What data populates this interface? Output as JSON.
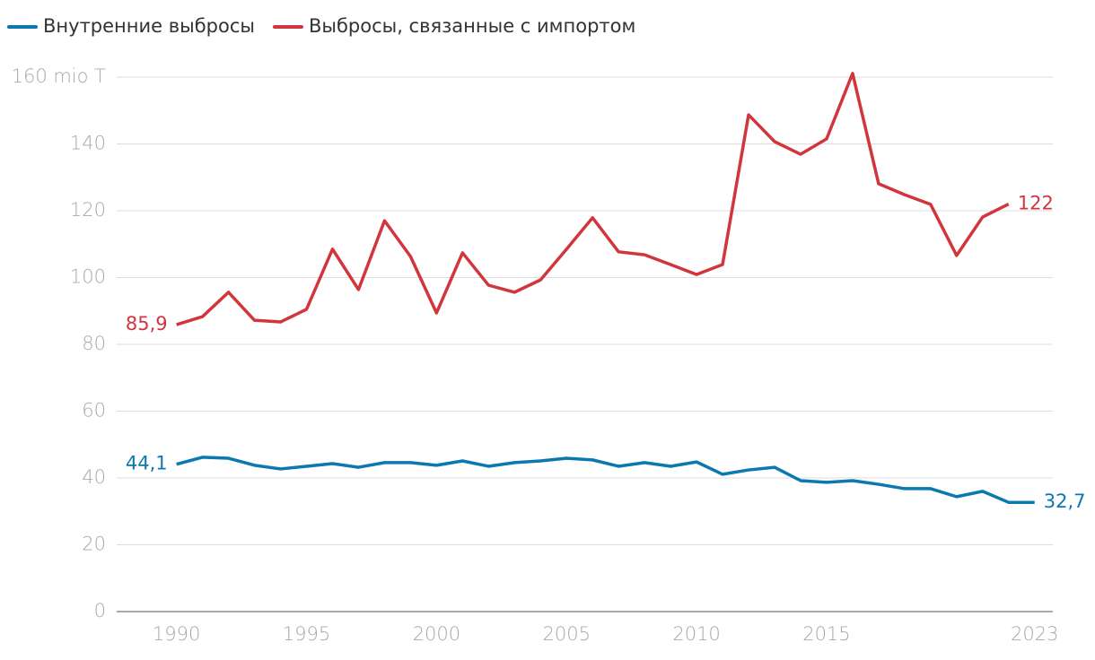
{
  "chart_data": {
    "type": "line",
    "x": [
      1990,
      1991,
      1992,
      1993,
      1994,
      1995,
      1996,
      1997,
      1998,
      1999,
      2000,
      2001,
      2002,
      2003,
      2004,
      2005,
      2006,
      2007,
      2008,
      2009,
      2010,
      2011,
      2012,
      2013,
      2014,
      2015,
      2016,
      2017,
      2018,
      2019,
      2020,
      2021,
      2022,
      2023
    ],
    "series": [
      {
        "name": "Внутренние выбросы",
        "color": "#0b78b0",
        "values": [
          44.1,
          46.2,
          45.9,
          43.8,
          42.7,
          43.5,
          44.3,
          43.2,
          44.6,
          44.6,
          43.8,
          45.1,
          43.5,
          44.6,
          45.1,
          45.9,
          45.4,
          43.5,
          44.6,
          43.5,
          44.8,
          41.1,
          42.4,
          43.2,
          39.2,
          38.7,
          39.2,
          38.1,
          36.8,
          36.8,
          34.4,
          36.0,
          32.7,
          32.7
        ],
        "value_labels": [
          "44,1",
          null,
          null,
          null,
          null,
          null,
          null,
          null,
          null,
          null,
          null,
          null,
          null,
          null,
          null,
          null,
          null,
          null,
          null,
          null,
          null,
          null,
          null,
          null,
          null,
          null,
          null,
          null,
          null,
          null,
          null,
          null,
          null,
          "32,7"
        ]
      },
      {
        "name": "Выбросы, связанные с импортом",
        "color": "#d2363d",
        "values": [
          85.9,
          88.3,
          95.6,
          87.2,
          86.7,
          90.5,
          108.5,
          96.4,
          117.0,
          106.3,
          89.4,
          107.4,
          97.7,
          95.6,
          99.3,
          108.5,
          117.9,
          107.7,
          106.8,
          103.9,
          100.9,
          103.9,
          148.7,
          140.7,
          136.9,
          141.5,
          161.1,
          128.1,
          124.8,
          121.9,
          106.6,
          118.1,
          122,
          null
        ],
        "value_labels": [
          "85,9",
          null,
          null,
          null,
          null,
          null,
          null,
          null,
          null,
          null,
          null,
          null,
          null,
          null,
          null,
          null,
          null,
          null,
          null,
          null,
          null,
          null,
          null,
          null,
          null,
          null,
          null,
          null,
          null,
          null,
          null,
          null,
          "122",
          null
        ]
      }
    ],
    "xlim": [
      1987.7,
      2023.7
    ],
    "xticks": [
      1990,
      1995,
      2000,
      2005,
      2010,
      2015,
      2023
    ],
    "ylim": [
      0,
      160
    ],
    "yticks": [
      0,
      20,
      40,
      60,
      80,
      100,
      120,
      140,
      {
        "value": 160,
        "label": "160 mio T"
      }
    ],
    "grid": true
  }
}
